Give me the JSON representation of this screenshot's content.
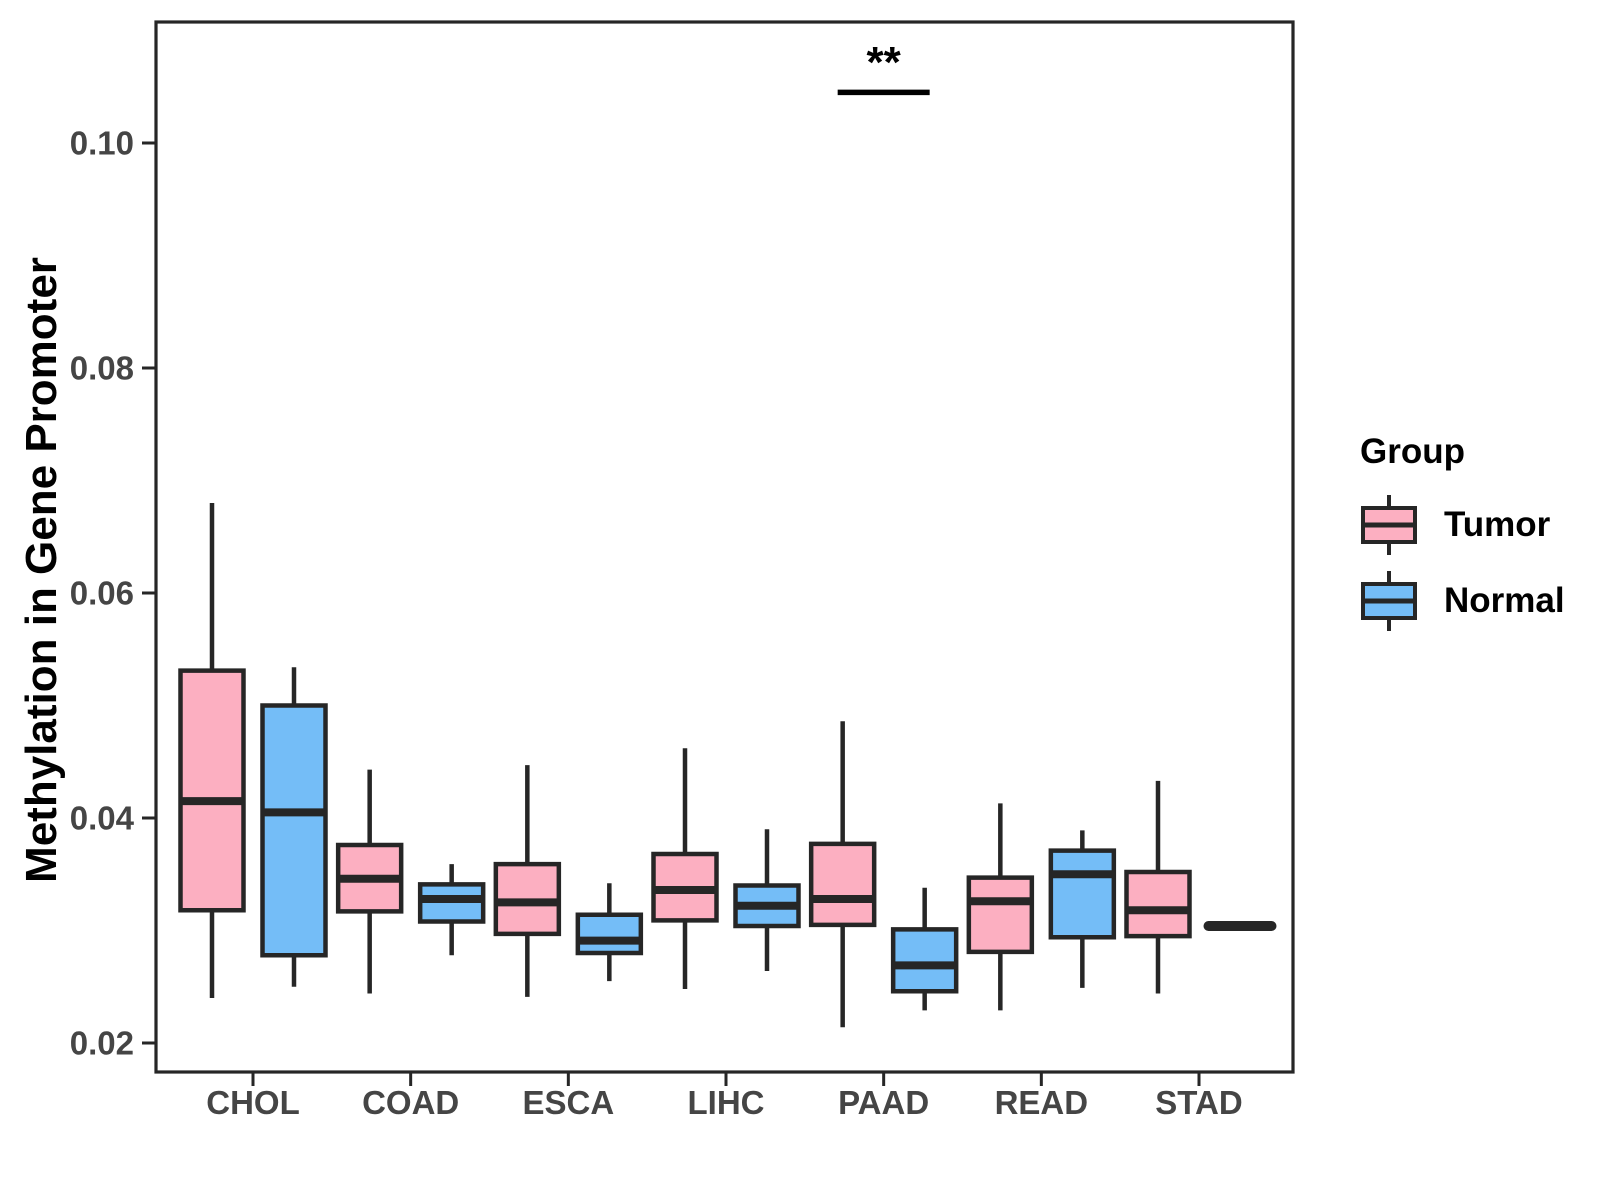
{
  "chart_data": {
    "type": "boxplot",
    "title": "",
    "xlabel": "",
    "ylabel": "Methylation in Gene Promoter",
    "grid": false,
    "legend_position": "right",
    "y_ticks": [
      0.02,
      0.04,
      0.06,
      0.08,
      0.1
    ],
    "y_tick_labels": [
      "0.02",
      "0.04",
      "0.06",
      "0.08",
      "0.10"
    ],
    "ylim": [
      0.0174,
      0.1108
    ],
    "categories": [
      "CHOL",
      "COAD",
      "ESCA",
      "LIHC",
      "PAAD",
      "READ",
      "STAD"
    ],
    "series": [
      {
        "name": "Tumor",
        "color": "#FCAFC1",
        "stats_order": [
          "whisker_low",
          "q1",
          "median",
          "q3",
          "whisker_high"
        ],
        "values": [
          [
            0.024,
            0.0318,
            0.0415,
            0.0531,
            0.068
          ],
          [
            0.0244,
            0.0317,
            0.0346,
            0.0376,
            0.0443
          ],
          [
            0.0241,
            0.0297,
            0.0325,
            0.0359,
            0.0447
          ],
          [
            0.0248,
            0.0309,
            0.0336,
            0.0368,
            0.0462
          ],
          [
            0.0214,
            0.0305,
            0.0328,
            0.0377,
            0.0486
          ],
          [
            0.0229,
            0.0281,
            0.0326,
            0.0347,
            0.0413
          ],
          [
            0.0244,
            0.0295,
            0.0318,
            0.0352,
            0.0433
          ]
        ]
      },
      {
        "name": "Normal",
        "color": "#74BDF7",
        "stats_order": [
          "whisker_low",
          "q1",
          "median",
          "q3",
          "whisker_high"
        ],
        "values": [
          [
            0.025,
            0.0278,
            0.0405,
            0.05,
            0.0534
          ],
          [
            0.0278,
            0.0308,
            0.0328,
            0.0341,
            0.0359
          ],
          [
            0.0255,
            0.028,
            0.0291,
            0.0314,
            0.0342
          ],
          [
            0.0264,
            0.0304,
            0.0322,
            0.034,
            0.039
          ],
          [
            0.0229,
            0.0246,
            0.0269,
            0.0301,
            0.0338
          ],
          [
            0.0249,
            0.0294,
            0.035,
            0.0371,
            0.0389
          ],
          [
            0.0304,
            0.0304,
            0.0304,
            0.0304,
            0.0304
          ]
        ]
      }
    ],
    "annotation": {
      "label": "**",
      "category": "PAAD",
      "category_index": 4,
      "line_value": 0.1045,
      "label_value": 0.1072
    },
    "colors": {
      "tumor": "#FCAFC1",
      "normal": "#74BDF7",
      "line": "#262626",
      "tick_text": "#454545",
      "panel_background": "#ffffff"
    }
  },
  "legend": {
    "title": "Group",
    "items": [
      {
        "label": "Tumor",
        "color": "#FCAFC1"
      },
      {
        "label": "Normal",
        "color": "#74BDF7"
      }
    ]
  }
}
